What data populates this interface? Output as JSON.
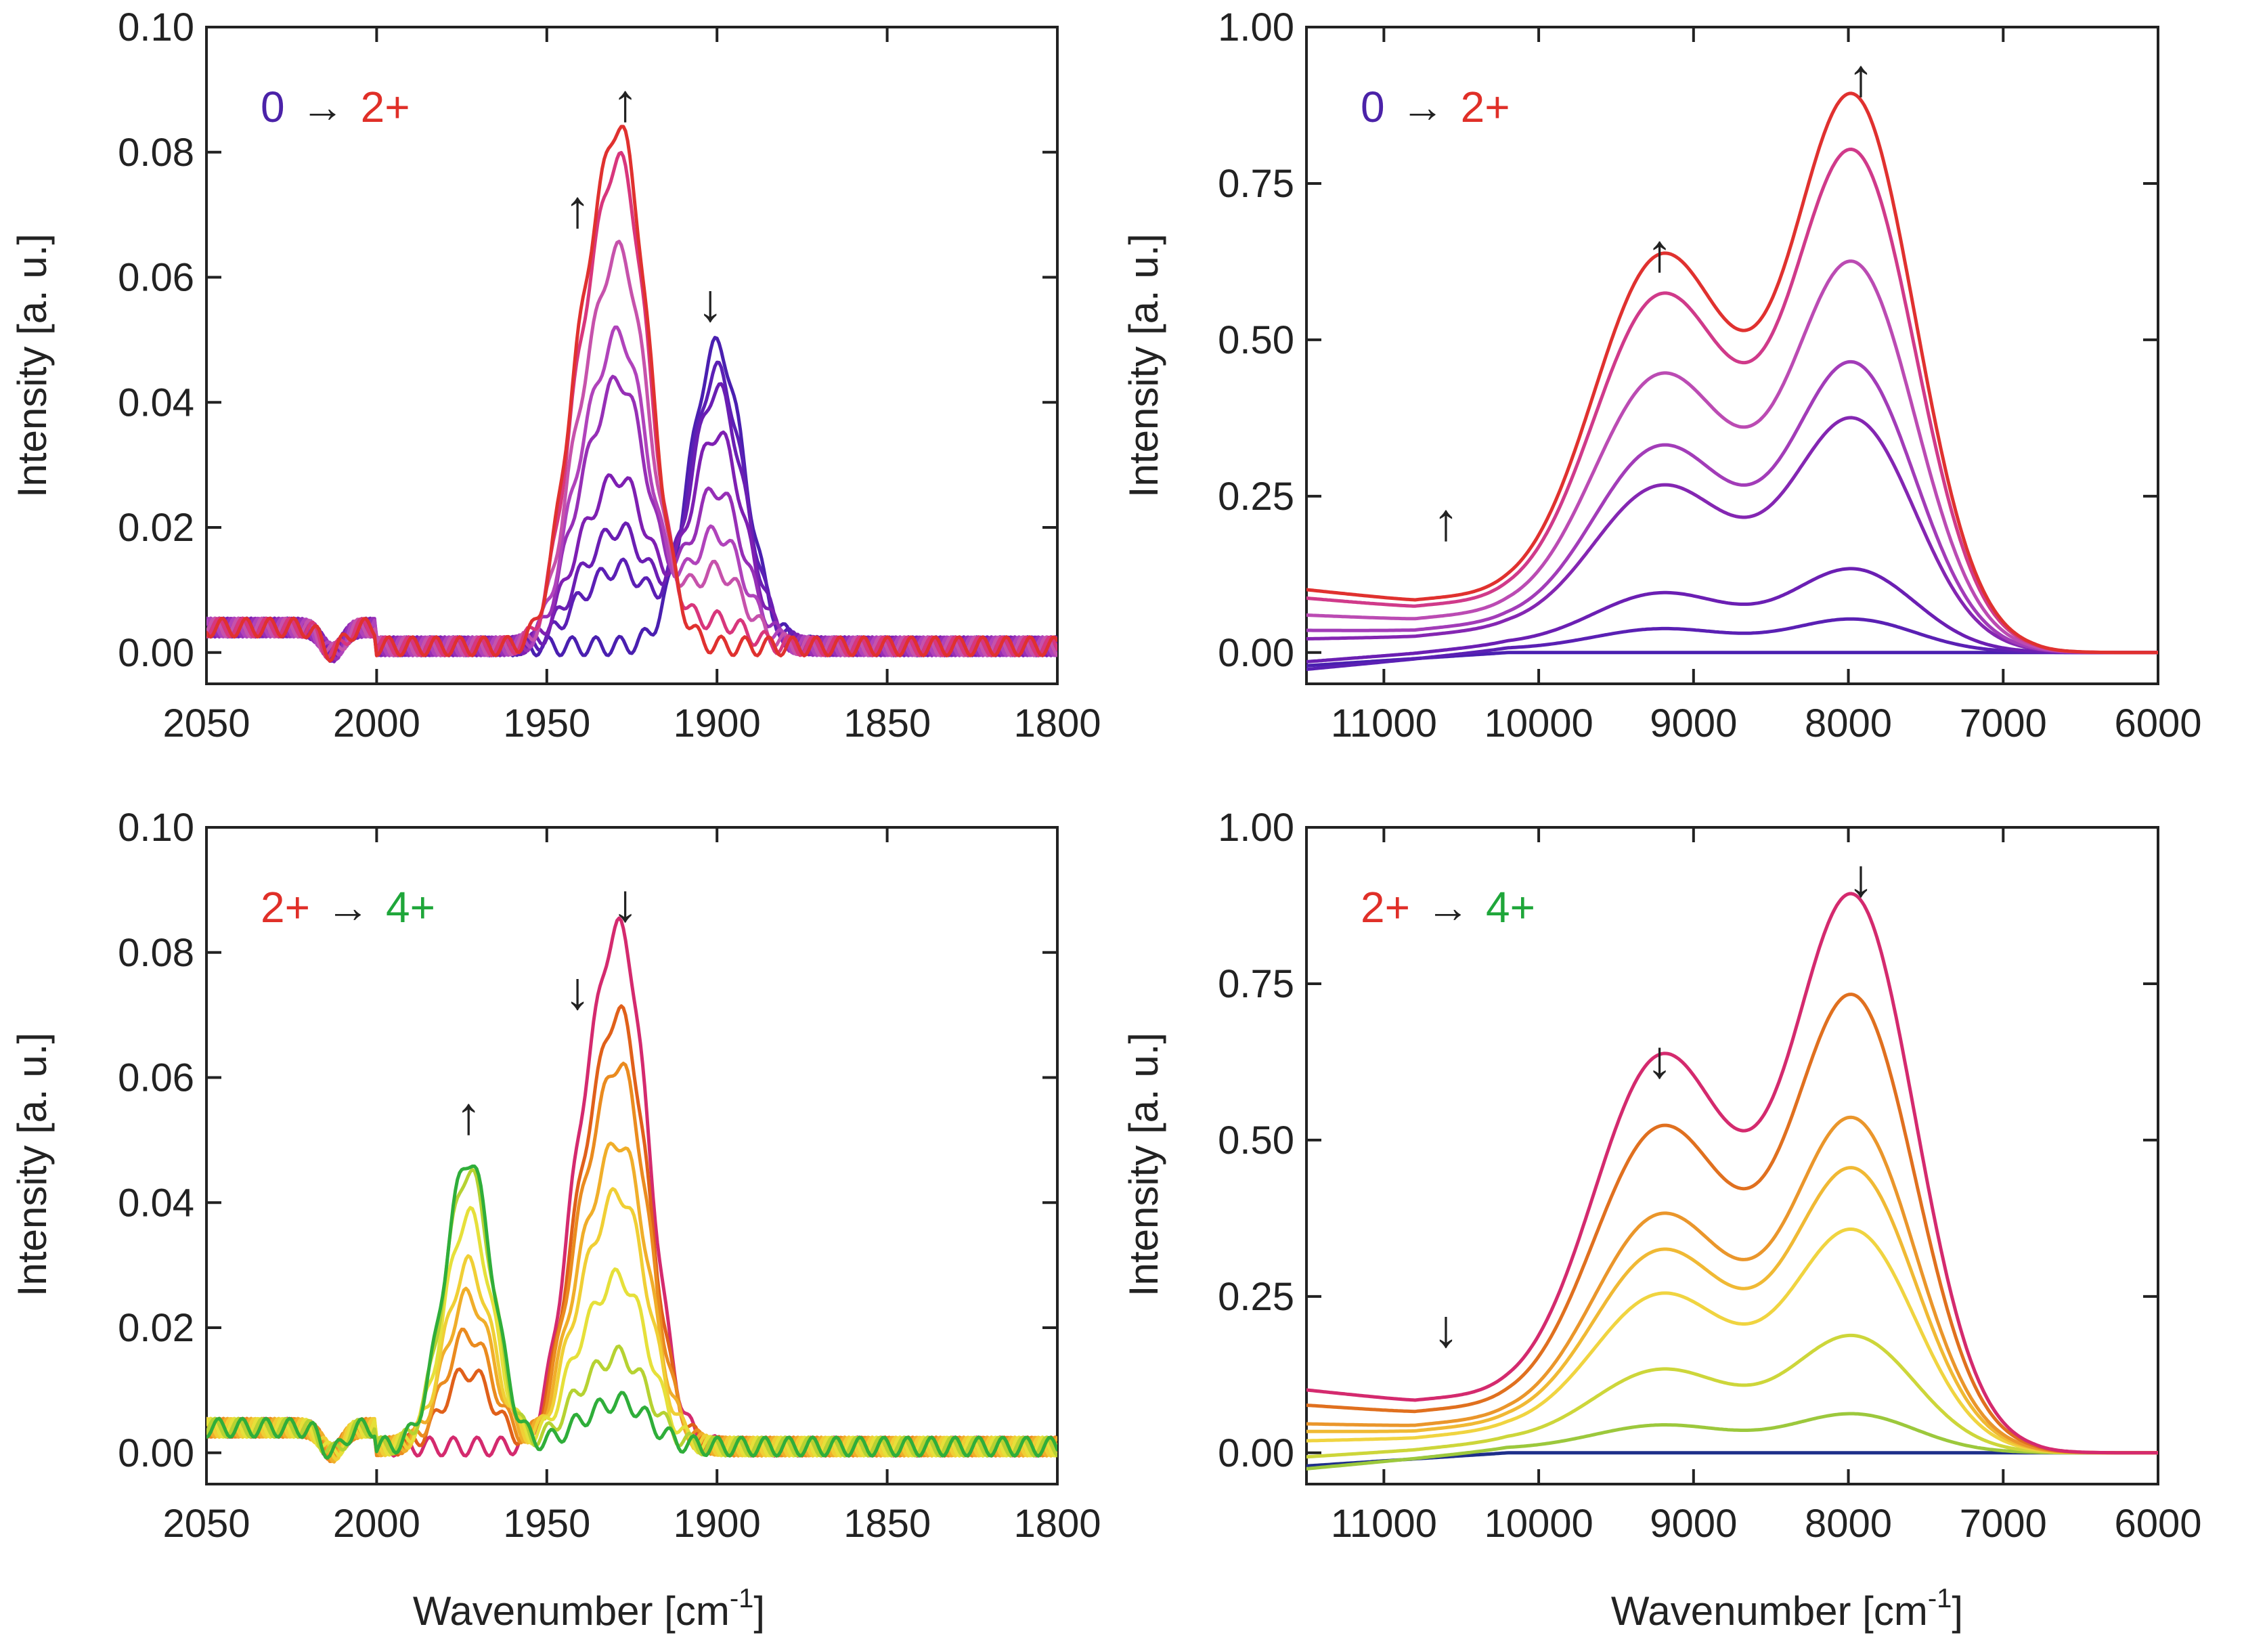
{
  "chart_data": [
    {
      "id": "tl",
      "type": "line",
      "xlabel": "",
      "ylabel": "Intensity [a. u.]",
      "xlim": [
        2050,
        1800
      ],
      "ylim": [
        -0.005,
        0.1
      ],
      "xticks": [
        2050,
        2000,
        1950,
        1900,
        1850,
        1800
      ],
      "xtick_labels": [
        "2050",
        "2000",
        "1950",
        "1900",
        "1850",
        "1800"
      ],
      "yticks": [
        0,
        0.02,
        0.04,
        0.06,
        0.08,
        0.1
      ],
      "ytick_labels": [
        "0.00",
        "0.02",
        "0.04",
        "0.06",
        "0.08",
        "0.10"
      ],
      "legend": {
        "from": "0",
        "arrow": "→",
        "to": "2+",
        "from_color": "#4b22a8",
        "to_color": "#e02f28"
      },
      "annotations": [
        {
          "symbol": "↑",
          "x": 1941,
          "y": 0.068
        },
        {
          "symbol": "↑",
          "x": 1927,
          "y": 0.085
        },
        {
          "symbol": "↓",
          "x": 1902,
          "y": 0.053
        }
      ],
      "series": [
        {
          "name": "s1",
          "color": "#4a1fb0",
          "peaks": [
            [
              0.048,
              1900,
              8
            ],
            [
              0.0,
              1928,
              8
            ],
            [
              0.0,
              1941,
              6
            ]
          ]
        },
        {
          "name": "s2",
          "color": "#5b1fb5",
          "peaks": [
            [
              0.044,
              1900,
              8
            ],
            [
              0.012,
              1928,
              8
            ],
            [
              0.004,
              1941,
              6
            ]
          ]
        },
        {
          "name": "s3",
          "color": "#6a1eb3",
          "peaks": [
            [
              0.041,
              1900,
              8
            ],
            [
              0.018,
              1928,
              8
            ],
            [
              0.006,
              1941,
              6
            ]
          ]
        },
        {
          "name": "s4",
          "color": "#7e1fb2",
          "peaks": [
            [
              0.034,
              1900,
              8
            ],
            [
              0.026,
              1928,
              8
            ],
            [
              0.009,
              1941,
              6
            ]
          ]
        },
        {
          "name": "s5",
          "color": "#962fb6",
          "peaks": [
            [
              0.025,
              1900,
              8
            ],
            [
              0.041,
              1928,
              8
            ],
            [
              0.013,
              1941,
              6
            ]
          ]
        },
        {
          "name": "s6",
          "color": "#b043bb",
          "peaks": [
            [
              0.018,
              1900,
              8
            ],
            [
              0.048,
              1928,
              8
            ],
            [
              0.016,
              1941,
              6
            ]
          ]
        },
        {
          "name": "s7",
          "color": "#c652ab",
          "peaks": [
            [
              0.012,
              1900,
              8
            ],
            [
              0.061,
              1928,
              8
            ],
            [
              0.02,
              1941,
              6
            ]
          ]
        },
        {
          "name": "s8",
          "color": "#d8367c",
          "peaks": [
            [
              0.004,
              1900,
              8
            ],
            [
              0.075,
              1928,
              8
            ],
            [
              0.025,
              1941,
              6
            ]
          ]
        },
        {
          "name": "s9",
          "color": "#e0312f",
          "peaks": [
            [
              0.0,
              1900,
              8
            ],
            [
              0.08,
              1928,
              8
            ],
            [
              0.027,
              1941,
              6
            ]
          ]
        }
      ]
    },
    {
      "id": "tr",
      "type": "line",
      "xlabel": "",
      "ylabel": "Intensity [a. u.]",
      "xlim": [
        11500,
        6000
      ],
      "ylim": [
        -0.05,
        1.0
      ],
      "xticks": [
        11000,
        10000,
        9000,
        8000,
        7000,
        6000
      ],
      "xtick_labels": [
        "11000",
        "10000",
        "9000",
        "8000",
        "7000",
        "6000"
      ],
      "yticks": [
        0,
        0.25,
        0.5,
        0.75,
        1.0
      ],
      "ytick_labels": [
        "0.00",
        "0.25",
        "0.50",
        "0.75",
        "1.00"
      ],
      "legend": {
        "from": "0",
        "arrow": "→",
        "to": "2+",
        "from_color": "#4b22a8",
        "to_color": "#e02f28"
      },
      "annotations": [
        {
          "symbol": "↑",
          "x": 10600,
          "y": 0.18
        },
        {
          "symbol": "↑",
          "x": 9220,
          "y": 0.61
        },
        {
          "symbol": "↑",
          "x": 7920,
          "y": 0.89
        }
      ],
      "series": [
        {
          "name": "s1",
          "color": "#4a1fb0",
          "scale": 0.0
        },
        {
          "name": "s2",
          "color": "#5a20b4",
          "scale": 0.06
        },
        {
          "name": "s3",
          "color": "#6b1fb3",
          "scale": 0.15
        },
        {
          "name": "s4",
          "color": "#8426b2",
          "scale": 0.42
        },
        {
          "name": "s5",
          "color": "#a23cb8",
          "scale": 0.52
        },
        {
          "name": "s6",
          "color": "#bb4bb3",
          "scale": 0.7
        },
        {
          "name": "s7",
          "color": "#d03a8a",
          "scale": 0.9
        },
        {
          "name": "s8",
          "color": "#e0312f",
          "scale": 1.0
        }
      ]
    },
    {
      "id": "bl",
      "type": "line",
      "xlabel": "Wavenumber [cm-1]",
      "ylabel": "Intensity [a. u.]",
      "xlim": [
        2050,
        1800
      ],
      "ylim": [
        -0.005,
        0.1
      ],
      "xticks": [
        2050,
        2000,
        1950,
        1900,
        1850,
        1800
      ],
      "xtick_labels": [
        "2050",
        "2000",
        "1950",
        "1900",
        "1850",
        "1800"
      ],
      "yticks": [
        0,
        0.02,
        0.04,
        0.06,
        0.08,
        0.1
      ],
      "ytick_labels": [
        "0.00",
        "0.02",
        "0.04",
        "0.06",
        "0.08",
        "0.10"
      ],
      "legend": {
        "from": "2+",
        "arrow": "→",
        "to": "4+",
        "from_color": "#e02f28",
        "to_color": "#1fa63a"
      },
      "annotations": [
        {
          "symbol": "↑",
          "x": 1973,
          "y": 0.051
        },
        {
          "symbol": "↓",
          "x": 1941,
          "y": 0.071
        },
        {
          "symbol": "↓",
          "x": 1927,
          "y": 0.085
        }
      ],
      "series": [
        {
          "name": "s1",
          "color": "#d42a6e",
          "peaks": [
            [
              0.0,
              1973,
              7
            ],
            [
              0.08,
              1928,
              8
            ],
            [
              0.027,
              1941,
              6
            ]
          ]
        },
        {
          "name": "s2",
          "color": "#e0601a",
          "peaks": [
            [
              0.012,
              1973,
              7
            ],
            [
              0.067,
              1928,
              8
            ],
            [
              0.022,
              1941,
              6
            ]
          ]
        },
        {
          "name": "s3",
          "color": "#ea8b1f",
          "peaks": [
            [
              0.018,
              1973,
              7
            ],
            [
              0.059,
              1928,
              8
            ],
            [
              0.02,
              1941,
              6
            ]
          ]
        },
        {
          "name": "s4",
          "color": "#f0ae2a",
          "peaks": [
            [
              0.024,
              1973,
              7
            ],
            [
              0.047,
              1928,
              8
            ],
            [
              0.016,
              1941,
              6
            ]
          ]
        },
        {
          "name": "s5",
          "color": "#f0cf35",
          "peaks": [
            [
              0.029,
              1973,
              7
            ],
            [
              0.039,
              1928,
              8
            ],
            [
              0.013,
              1941,
              6
            ]
          ]
        },
        {
          "name": "s6",
          "color": "#e6e03a",
          "peaks": [
            [
              0.037,
              1973,
              7
            ],
            [
              0.026,
              1928,
              8
            ],
            [
              0.009,
              1941,
              6
            ]
          ]
        },
        {
          "name": "s7",
          "color": "#b6d232",
          "peaks": [
            [
              0.044,
              1973,
              7
            ],
            [
              0.014,
              1928,
              8
            ],
            [
              0.005,
              1941,
              6
            ]
          ]
        },
        {
          "name": "s8",
          "color": "#2fae3a",
          "peaks": [
            [
              0.046,
              1973,
              7
            ],
            [
              0.007,
              1928,
              8
            ],
            [
              0.002,
              1941,
              6
            ]
          ]
        }
      ]
    },
    {
      "id": "br",
      "type": "line",
      "xlabel": "Wavenumber [cm-1]",
      "ylabel": "Intensity [a. u.]",
      "xlim": [
        11500,
        6000
      ],
      "ylim": [
        -0.05,
        1.0
      ],
      "xticks": [
        11000,
        10000,
        9000,
        8000,
        7000,
        6000
      ],
      "xtick_labels": [
        "11000",
        "10000",
        "9000",
        "8000",
        "7000",
        "6000"
      ],
      "yticks": [
        0,
        0.25,
        0.5,
        0.75,
        1.0
      ],
      "ytick_labels": [
        "0.00",
        "0.25",
        "0.50",
        "0.75",
        "1.00"
      ],
      "legend": {
        "from": "2+",
        "arrow": "→",
        "to": "4+",
        "from_color": "#e02f28",
        "to_color": "#1fa63a"
      },
      "annotations": [
        {
          "symbol": "↓",
          "x": 10600,
          "y": 0.17
        },
        {
          "symbol": "↓",
          "x": 9220,
          "y": 0.6
        },
        {
          "symbol": "↓",
          "x": 7920,
          "y": 0.89
        }
      ],
      "series": [
        {
          "name": "s1",
          "color": "#1e2f8a",
          "scale": 0.0
        },
        {
          "name": "s2",
          "color": "#9cc83c",
          "scale": 0.07
        },
        {
          "name": "s3",
          "color": "#cdd63a",
          "scale": 0.21
        },
        {
          "name": "s4",
          "color": "#f0d440",
          "scale": 0.4
        },
        {
          "name": "s5",
          "color": "#f0b934",
          "scale": 0.51
        },
        {
          "name": "s6",
          "color": "#ea962b",
          "scale": 0.6
        },
        {
          "name": "s7",
          "color": "#e0701f",
          "scale": 0.82
        },
        {
          "name": "s8",
          "color": "#d42a6e",
          "scale": 1.0
        }
      ]
    }
  ],
  "labels": {
    "xlabel_main": "Wavenumber [cm",
    "xlabel_sup": "-1",
    "xlabel_end": "]",
    "ylabel": "Intensity [a. u.]"
  }
}
